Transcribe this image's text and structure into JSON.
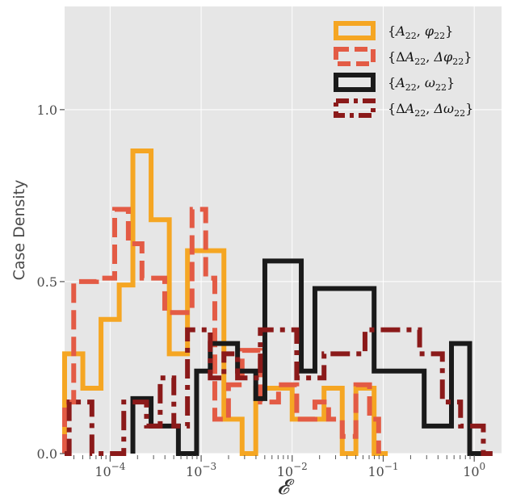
{
  "chart_data": {
    "type": "histogram-step",
    "xscale": "log",
    "xlim_log10": [
      -4.5,
      0.3
    ],
    "ylim": [
      0,
      1.3
    ],
    "xlabel": "𝓔",
    "ylabel": "Case Density",
    "grid": true,
    "legend_position": "top-right",
    "y_ticks": [
      {
        "value": 0.0,
        "label": "0.0"
      },
      {
        "value": 0.5,
        "label": "0.5"
      },
      {
        "value": 1.0,
        "label": "1.0"
      }
    ],
    "x_ticks": [
      {
        "exp": -4,
        "base": "10",
        "power": "−4"
      },
      {
        "exp": -3,
        "base": "10",
        "power": "−3"
      },
      {
        "exp": -2,
        "base": "10",
        "power": "−2"
      },
      {
        "exp": -1,
        "base": "10",
        "power": "−1"
      },
      {
        "exp": 0,
        "base": "10",
        "power": "0"
      }
    ],
    "series": [
      {
        "name": "{A22, φ22}",
        "legend": {
          "prefix": "{",
          "a": "A",
          "a_sub": "22",
          "b": "φ",
          "b_sub": "22",
          "suffix": "}"
        },
        "color": "#f5a623",
        "dash": "solid",
        "log_edges": [
          -4.5,
          -4.3,
          -4.1,
          -3.9,
          -3.75,
          -3.55,
          -3.35,
          -3.15,
          -2.95,
          -2.75,
          -2.55,
          -2.4,
          -2.2,
          -2.0,
          -1.85,
          -1.65,
          -1.45,
          -1.3,
          -1.1,
          -0.95
        ],
        "values": [
          0.29,
          0.19,
          0.39,
          0.49,
          0.88,
          0.68,
          0.29,
          0.59,
          0.59,
          0.1,
          0.0,
          0.19,
          0.19,
          0.1,
          0.1,
          0.19,
          0.0,
          0.19,
          0.0
        ]
      },
      {
        "name": "{ΔA22, Δφ22}",
        "legend": {
          "prefix": "{Δ",
          "a": "A",
          "a_sub": "22",
          "b": "Δφ",
          "b_sub": "22",
          "suffix": "}"
        },
        "color": "#e35b45",
        "dash": "dashed",
        "log_edges": [
          -4.5,
          -4.4,
          -4.15,
          -3.95,
          -3.8,
          -3.65,
          -3.4,
          -3.2,
          -3.1,
          -2.95,
          -2.85,
          -2.7,
          -2.55,
          -2.35,
          -2.15,
          -1.95,
          -1.75,
          -1.6,
          -1.45,
          -1.3,
          -1.15,
          -1.05
        ],
        "values": [
          0.15,
          0.5,
          0.51,
          0.71,
          0.61,
          0.51,
          0.41,
          0.41,
          0.71,
          0.51,
          0.1,
          0.2,
          0.3,
          0.15,
          0.2,
          0.1,
          0.15,
          0.1,
          0.05,
          0.2,
          0.1
        ]
      },
      {
        "name": "{A22, ω22}",
        "legend": {
          "prefix": "{",
          "a": "A",
          "a_sub": "22",
          "b": "ω",
          "b_sub": "22",
          "suffix": "}"
        },
        "color": "#1a1a1a",
        "dash": "solid",
        "log_edges": [
          -3.75,
          -3.55,
          -3.25,
          -3.05,
          -2.9,
          -2.6,
          -2.4,
          -2.3,
          -1.9,
          -1.75,
          -1.45,
          -1.1,
          -0.8,
          -0.55,
          -0.25,
          -0.05,
          0.2
        ],
        "values": [
          0.16,
          0.08,
          0.0,
          0.24,
          0.32,
          0.24,
          0.16,
          0.56,
          0.24,
          0.48,
          0.48,
          0.24,
          0.24,
          0.08,
          0.32,
          0.0
        ]
      },
      {
        "name": "{ΔA22, Δω22}",
        "legend": {
          "prefix": "{Δ",
          "a": "A",
          "a_sub": "22",
          "b": "Δω",
          "b_sub": "22",
          "suffix": "}"
        },
        "color": "#8b1a1a",
        "dash": "dashdot",
        "log_edges": [
          -4.5,
          -4.45,
          -4.2,
          -3.85,
          -3.6,
          -3.45,
          -3.3,
          -3.15,
          -2.9,
          -2.75,
          -2.6,
          -2.35,
          -2.1,
          -1.95,
          -1.65,
          -1.2,
          -0.9,
          -0.6,
          -0.35,
          -0.15,
          0.1,
          0.2
        ],
        "values": [
          0.0,
          0.15,
          0.0,
          0.15,
          0.08,
          0.22,
          0.08,
          0.36,
          0.22,
          0.29,
          0.22,
          0.36,
          0.36,
          0.22,
          0.29,
          0.36,
          0.36,
          0.29,
          0.15,
          0.08,
          0.0
        ]
      }
    ]
  }
}
